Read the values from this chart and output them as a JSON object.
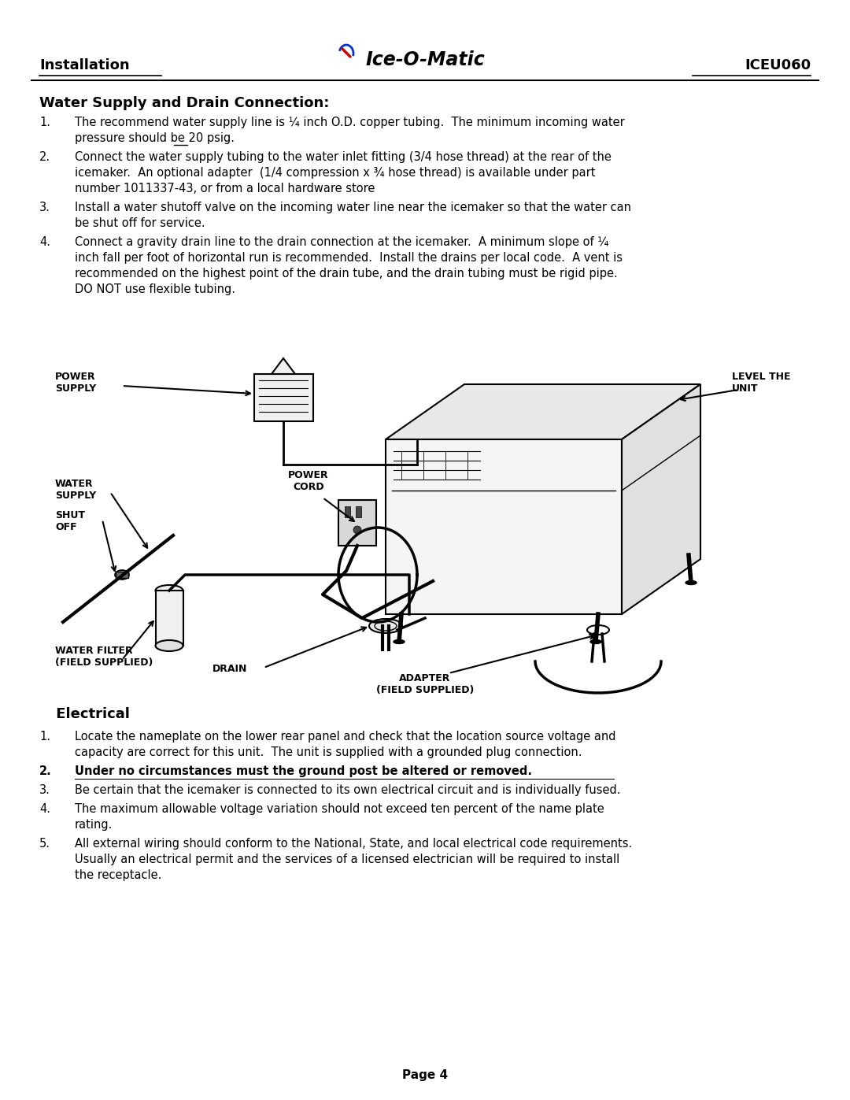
{
  "page_background": "#ffffff",
  "header_left": "Installation",
  "header_center": "Ice-O-Matic",
  "header_right": "ICEU060",
  "section1_title": "Water Supply and Drain Connection:",
  "section2_title": "Electrical",
  "page_number": "Page 4"
}
